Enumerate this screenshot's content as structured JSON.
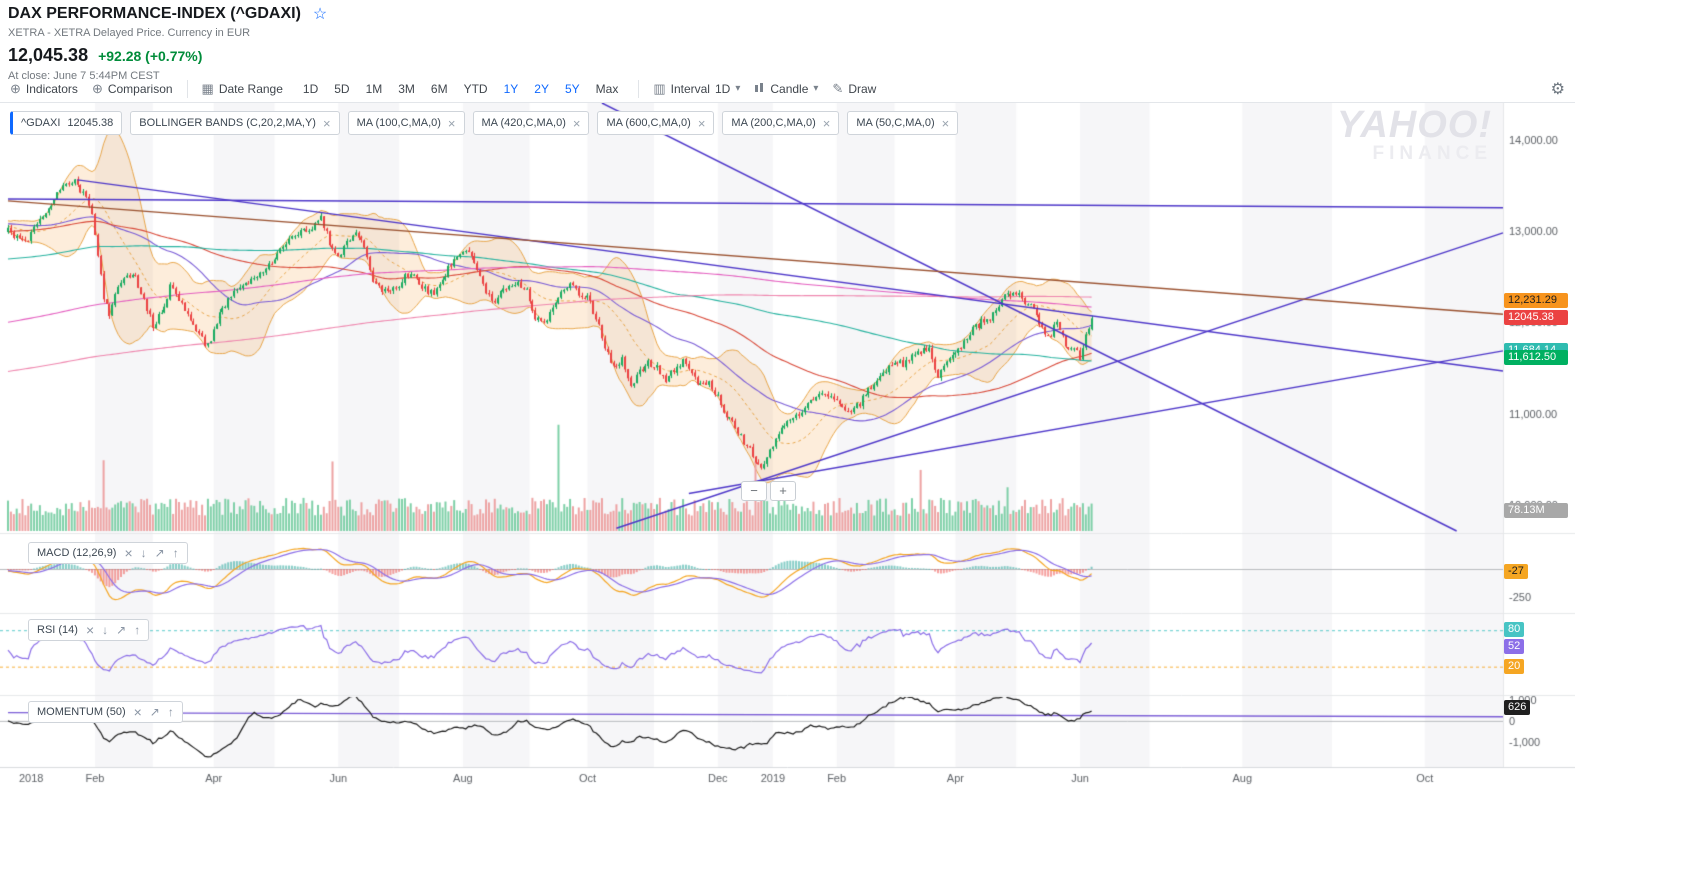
{
  "header": {
    "title": "DAX PERFORMANCE-INDEX (^GDAXI)",
    "subtitle": "XETRA - XETRA Delayed Price. Currency in EUR",
    "price": "12,045.38",
    "change": "+92.28 (+0.77%)",
    "at_close": "At close: June 7 5:44PM CEST"
  },
  "icons": {
    "plus_circle": "⊕",
    "calendar": "▦",
    "interval": "▥",
    "caret": "▾",
    "pencil": "✎",
    "gear": "⚙",
    "star": "☆",
    "close": "×",
    "up": "↑",
    "down": "↓",
    "expand": "↗",
    "minus": "−",
    "plus": "+"
  },
  "toolbar": {
    "indicators": "Indicators",
    "comparison": "Comparison",
    "date_range": "Date Range",
    "ranges": [
      {
        "label": "1D",
        "active": false
      },
      {
        "label": "5D",
        "active": false
      },
      {
        "label": "1M",
        "active": false
      },
      {
        "label": "3M",
        "active": false
      },
      {
        "label": "6M",
        "active": false
      },
      {
        "label": "YTD",
        "active": false
      },
      {
        "label": "1Y",
        "active": true
      },
      {
        "label": "2Y",
        "active": true
      },
      {
        "label": "5Y",
        "active": true
      },
      {
        "label": "Max",
        "active": false
      }
    ],
    "interval_label": "Interval",
    "interval_value": "1D",
    "chart_type": "Candle",
    "draw": "Draw"
  },
  "watermark": {
    "line1": "YAHOO!",
    "line2": "FINANCE"
  },
  "legend": {
    "symbol": {
      "label": "^GDAXI",
      "value": "12045.38"
    },
    "indicators": [
      {
        "label": "BOLLINGER BANDS (C,20,2,MA,Y)"
      },
      {
        "label": "MA (100,C,MA,0)"
      },
      {
        "label": "MA (420,C,MA,0)"
      },
      {
        "label": "MA (600,C,MA,0)"
      },
      {
        "label": "MA (200,C,MA,0)"
      },
      {
        "label": "MA (50,C,MA,0)"
      }
    ]
  },
  "panels": {
    "macd": {
      "label": "MACD (12,26,9)"
    },
    "rsi": {
      "label": "RSI (14)"
    },
    "momentum": {
      "label": "MOMENTUM (50)"
    }
  },
  "tags": {
    "main": [
      {
        "text": "12,231.29",
        "value": 12231.29,
        "bg": "#f7941e",
        "fg": "#1e1e1e"
      },
      {
        "text": "12045.38",
        "value": 12045.38,
        "bg": "#eb4242",
        "fg": "#ffffff"
      },
      {
        "text": "11,684.14",
        "value": 11684.14,
        "bg": "#2fbcb0",
        "fg": "#ffffff"
      },
      {
        "text": "11,612.50",
        "value": 11612.5,
        "bg": "#00b061",
        "fg": "#ffffff"
      }
    ],
    "volume": {
      "text": "78.13M",
      "bg": "#a8a8a8",
      "fg": "#ffffff"
    },
    "macd": {
      "text": "-27",
      "value": -27,
      "bg": "#f5a623",
      "fg": "#1e1e1e"
    },
    "rsi": {
      "text": "52",
      "value": 52,
      "bg": "#8c6fe8",
      "fg": "#ffffff"
    },
    "rsi_hi": {
      "text": "80",
      "value": 80,
      "bg": "#47c4c4",
      "fg": "#ffffff"
    },
    "rsi_lo": {
      "text": "20",
      "value": 20,
      "bg": "#f5a623",
      "fg": "#ffffff"
    },
    "momentum": {
      "text": "626",
      "value": 626,
      "bg": "#1f1f1f",
      "fg": "#ffffff"
    }
  },
  "axes": {
    "price": [
      {
        "label": "14,000.00",
        "value": 14000
      },
      {
        "label": "13,000.00",
        "value": 13000
      },
      {
        "label": "12,000.00",
        "value": 12000
      },
      {
        "label": "11,000.00",
        "value": 11000
      },
      {
        "label": "10,000.00",
        "value": 10000
      }
    ],
    "macd": [
      {
        "label": "-250",
        "value": -250
      }
    ],
    "momentum": [
      {
        "label": "1,000",
        "value": 1000
      },
      {
        "label": "0",
        "value": 0
      },
      {
        "label": "-1,000",
        "value": -1000
      }
    ]
  },
  "chart_data": {
    "type": "candlestick",
    "symbol": "^GDAXI",
    "title": "DAX PERFORMANCE-INDEX",
    "currency": "EUR",
    "interval": "1D",
    "last_close": 12045.38,
    "change": 92.28,
    "change_pct": 0.77,
    "visible_days": 375,
    "axis_days": 516,
    "price_axis_range": [
      9720,
      14400
    ],
    "anchors": [
      [
        0,
        13000
      ],
      [
        6,
        12880
      ],
      [
        10,
        13060
      ],
      [
        14,
        13270
      ],
      [
        18,
        13440
      ],
      [
        22,
        13560
      ],
      [
        26,
        13420
      ],
      [
        29,
        13180
      ],
      [
        31,
        12760
      ],
      [
        33,
        12250
      ],
      [
        35,
        12110
      ],
      [
        38,
        12380
      ],
      [
        41,
        12480
      ],
      [
        44,
        12500
      ],
      [
        47,
        12230
      ],
      [
        50,
        11980
      ],
      [
        53,
        12100
      ],
      [
        56,
        12390
      ],
      [
        59,
        12250
      ],
      [
        62,
        12060
      ],
      [
        65,
        11900
      ],
      [
        68,
        11780
      ],
      [
        70,
        11830
      ],
      [
        73,
        12080
      ],
      [
        77,
        12290
      ],
      [
        81,
        12420
      ],
      [
        85,
        12500
      ],
      [
        89,
        12580
      ],
      [
        93,
        12740
      ],
      [
        97,
        12920
      ],
      [
        101,
        12980
      ],
      [
        105,
        13020
      ],
      [
        108,
        13140
      ],
      [
        111,
        12880
      ],
      [
        114,
        12720
      ],
      [
        117,
        12870
      ],
      [
        120,
        13010
      ],
      [
        123,
        12830
      ],
      [
        126,
        12480
      ],
      [
        129,
        12340
      ],
      [
        132,
        12310
      ],
      [
        135,
        12420
      ],
      [
        139,
        12560
      ],
      [
        143,
        12380
      ],
      [
        147,
        12320
      ],
      [
        151,
        12540
      ],
      [
        155,
        12700
      ],
      [
        159,
        12780
      ],
      [
        163,
        12480
      ],
      [
        167,
        12220
      ],
      [
        171,
        12350
      ],
      [
        175,
        12420
      ],
      [
        179,
        12380
      ],
      [
        182,
        12050
      ],
      [
        185,
        11980
      ],
      [
        188,
        12150
      ],
      [
        191,
        12350
      ],
      [
        194,
        12420
      ],
      [
        197,
        12300
      ],
      [
        200,
        12280
      ],
      [
        203,
        12050
      ],
      [
        206,
        11750
      ],
      [
        209,
        11520
      ],
      [
        212,
        11600
      ],
      [
        215,
        11310
      ],
      [
        218,
        11480
      ],
      [
        221,
        11560
      ],
      [
        224,
        11500
      ],
      [
        227,
        11350
      ],
      [
        230,
        11480
      ],
      [
        233,
        11570
      ],
      [
        236,
        11420
      ],
      [
        239,
        11300
      ],
      [
        242,
        11350
      ],
      [
        245,
        11200
      ],
      [
        248,
        10980
      ],
      [
        251,
        10880
      ],
      [
        254,
        10700
      ],
      [
        257,
        10550
      ],
      [
        260,
        10420
      ],
      [
        262,
        10520
      ],
      [
        264,
        10650
      ],
      [
        267,
        10830
      ],
      [
        270,
        10920
      ],
      [
        273,
        11010
      ],
      [
        276,
        11120
      ],
      [
        279,
        11190
      ],
      [
        282,
        11230
      ],
      [
        285,
        11160
      ],
      [
        288,
        11080
      ],
      [
        291,
        11020
      ],
      [
        294,
        11120
      ],
      [
        297,
        11260
      ],
      [
        300,
        11380
      ],
      [
        303,
        11470
      ],
      [
        306,
        11580
      ],
      [
        309,
        11540
      ],
      [
        312,
        11620
      ],
      [
        315,
        11680
      ],
      [
        318,
        11710
      ],
      [
        321,
        11420
      ],
      [
        324,
        11560
      ],
      [
        327,
        11650
      ],
      [
        330,
        11780
      ],
      [
        333,
        11920
      ],
      [
        336,
        12010
      ],
      [
        339,
        12060
      ],
      [
        342,
        12210
      ],
      [
        345,
        12310
      ],
      [
        348,
        12330
      ],
      [
        351,
        12240
      ],
      [
        354,
        12120
      ],
      [
        357,
        11920
      ],
      [
        360,
        11860
      ],
      [
        362,
        12020
      ],
      [
        364,
        11830
      ],
      [
        366,
        11700
      ],
      [
        368,
        11750
      ],
      [
        370,
        11620
      ],
      [
        372,
        11850
      ],
      [
        374,
        12045
      ]
    ],
    "pre_anchors": [
      [
        -600,
        10050
      ],
      [
        -560,
        9850
      ],
      [
        -520,
        10300
      ],
      [
        -480,
        10150
      ],
      [
        -440,
        10600
      ],
      [
        -400,
        10550
      ],
      [
        -360,
        10750
      ],
      [
        -320,
        11100
      ],
      [
        -280,
        11900
      ],
      [
        -240,
        12050
      ],
      [
        -200,
        12350
      ],
      [
        -160,
        12250
      ],
      [
        -120,
        12500
      ],
      [
        -80,
        12900
      ],
      [
        -50,
        13050
      ],
      [
        -25,
        13150
      ],
      [
        -10,
        13050
      ],
      [
        0,
        13000
      ]
    ],
    "months": [
      {
        "d": 0,
        "shaded": false,
        "label": ""
      },
      {
        "d": 8,
        "shaded": false,
        "label": "2018"
      },
      {
        "d": 30,
        "shaded": true,
        "label": "Feb"
      },
      {
        "d": 50,
        "shaded": false,
        "label": ""
      },
      {
        "d": 71,
        "shaded": true,
        "label": "Apr"
      },
      {
        "d": 92,
        "shaded": false,
        "label": ""
      },
      {
        "d": 114,
        "shaded": true,
        "label": "Jun"
      },
      {
        "d": 135,
        "shaded": false,
        "label": ""
      },
      {
        "d": 157,
        "shaded": true,
        "label": "Aug"
      },
      {
        "d": 180,
        "shaded": false,
        "label": ""
      },
      {
        "d": 200,
        "shaded": true,
        "label": "Oct"
      },
      {
        "d": 223,
        "shaded": false,
        "label": ""
      },
      {
        "d": 245,
        "shaded": true,
        "label": "Dec"
      },
      {
        "d": 264,
        "shaded": false,
        "label": "2019"
      },
      {
        "d": 286,
        "shaded": true,
        "label": "Feb"
      },
      {
        "d": 306,
        "shaded": false,
        "label": ""
      },
      {
        "d": 327,
        "shaded": true,
        "label": "Apr"
      },
      {
        "d": 348,
        "shaded": false,
        "label": ""
      },
      {
        "d": 370,
        "shaded": true,
        "label": "Jun"
      },
      {
        "d": 394,
        "shaded": false,
        "label": ""
      },
      {
        "d": 426,
        "shaded": true,
        "label": "Aug"
      },
      {
        "d": 457,
        "shaded": false,
        "label": ""
      },
      {
        "d": 489,
        "shaded": true,
        "label": "Oct"
      },
      {
        "d": 516,
        "shaded": false,
        "label": ""
      }
    ],
    "volume_spikes": {
      "33": 95,
      "112": 110,
      "190": 205,
      "258": 85,
      "315": 70,
      "345": 60
    },
    "volume_max": 270,
    "volume_last_label": "78.13M",
    "bollinger": {
      "window": 20,
      "stddev": 2,
      "fill": "rgba(243,166,77,0.2)",
      "line": "#e8a64a"
    },
    "mas": [
      {
        "window": 50,
        "color": "#7a5cd6"
      },
      {
        "window": 100,
        "color": "#d94a3a"
      },
      {
        "window": 200,
        "color": "#27b3a0"
      },
      {
        "window": 420,
        "color": "#e45fc0"
      },
      {
        "window": 600,
        "color": "#ef86ae"
      }
    ],
    "candle_up": "#1aab61",
    "candle_down": "#eb4242",
    "volume_up": "#7fd0a8",
    "volume_down": "#eda3a3",
    "trendlines": [
      {
        "d1": 0,
        "p1": 13350,
        "d2": 516,
        "p2": 13255,
        "color": "#4d36c9"
      },
      {
        "d1": 24,
        "p1": 13560,
        "d2": 516,
        "p2": 11470,
        "color": "#4d36c9"
      },
      {
        "d1": 205,
        "p1": 14400,
        "d2": 500,
        "p2": 9720,
        "color": "#4d36c9"
      },
      {
        "d1": 210,
        "p1": 9750,
        "d2": 516,
        "p2": 12980,
        "color": "#4d36c9"
      },
      {
        "d1": 235,
        "p1": 10130,
        "d2": 516,
        "p2": 11690,
        "color": "#4d36c9"
      },
      {
        "d1": 0,
        "p1": 13330,
        "d2": 516,
        "p2": 12090,
        "color": "#9a512f"
      }
    ],
    "sub_indicators": {
      "macd": {
        "fast": 12,
        "slow": 26,
        "signal": 9,
        "range": [
          300,
          -370
        ],
        "line": "#f5a623",
        "signal_color": "#8c6fe8",
        "last": -27
      },
      "rsi": {
        "period": 14,
        "range": [
          105,
          -25
        ],
        "color": "#8c6fe8",
        "upper": 80,
        "lower": 20,
        "last": 52
      },
      "momentum": {
        "period": 50,
        "range": [
          1150,
          -2170
        ],
        "color": "#1c1c1c",
        "last": 626,
        "trendline": {
          "d1": 0,
          "v1": 400,
          "d2": 516,
          "v2": 200,
          "color": "#7a5cd6"
        }
      }
    }
  }
}
